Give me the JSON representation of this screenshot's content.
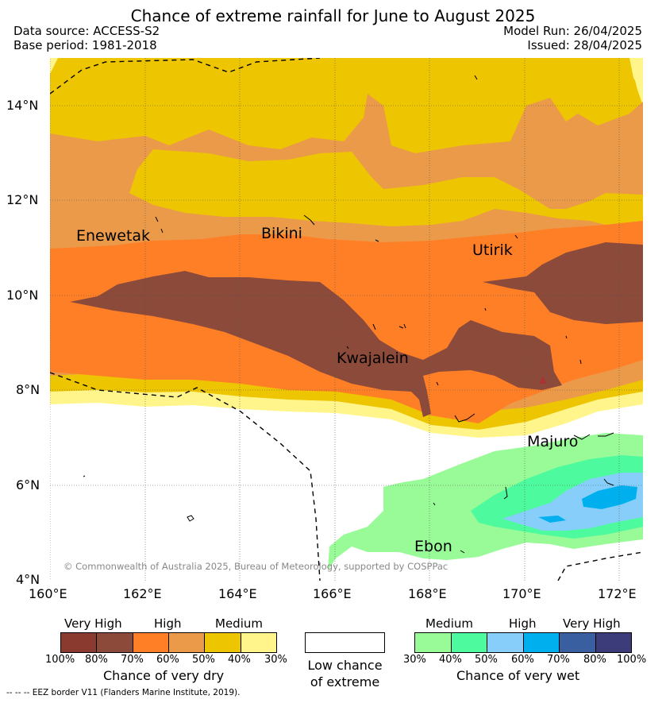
{
  "title": "Chance of extreme rainfall for June to August 2025",
  "header": {
    "data_source": "Data source: ACCESS-S2",
    "base_period": "Base period: 1981-2018",
    "model_run": "Model Run: 26/04/2025",
    "issued": "Issued: 28/04/2025"
  },
  "map": {
    "lat_labels": [
      "14°N",
      "12°N",
      "10°N",
      "8°N",
      "6°N",
      "4°N"
    ],
    "lon_labels": [
      "160°E",
      "162°E",
      "164°E",
      "166°E",
      "168°E",
      "170°E",
      "172°E"
    ],
    "place_labels": {
      "enewetak": "Enewetak",
      "bikini": "Bikini",
      "utirik": "Utirik",
      "kwajalein": "Kwajalein",
      "majuro": "Majuro",
      "ebon": "Ebon"
    },
    "copyright": "© Commonwealth of Australia 2025, Bureau of Meteorology, supported by COSPPac"
  },
  "legend": {
    "dry": {
      "categories": [
        "Very High",
        "High",
        "Medium"
      ],
      "ticks": [
        "100%",
        "80%",
        "70%",
        "60%",
        "50%",
        "40%",
        "30%"
      ],
      "colors": [
        "#8b3a2f",
        "#8b4a3a",
        "#ff7f27",
        "#eb9a4a",
        "#edc500",
        "#fff58a"
      ],
      "caption": "Chance of very dry"
    },
    "neutral": {
      "line1": "Low chance",
      "line2": "of extreme",
      "color": "#ffffff"
    },
    "wet": {
      "categories": [
        "Medium",
        "High",
        "Very High"
      ],
      "ticks": [
        "30%",
        "40%",
        "50%",
        "60%",
        "70%",
        "80%",
        "100%"
      ],
      "colors": [
        "#98fb98",
        "#4dfa9e",
        "#87cefa",
        "#00b0ee",
        "#3a5fa0",
        "#3c3c7a"
      ],
      "caption": "Chance of very wet"
    }
  },
  "eez_note": "--  --  -- EEZ border V11 (Flanders Marine Institute, 2019)."
}
